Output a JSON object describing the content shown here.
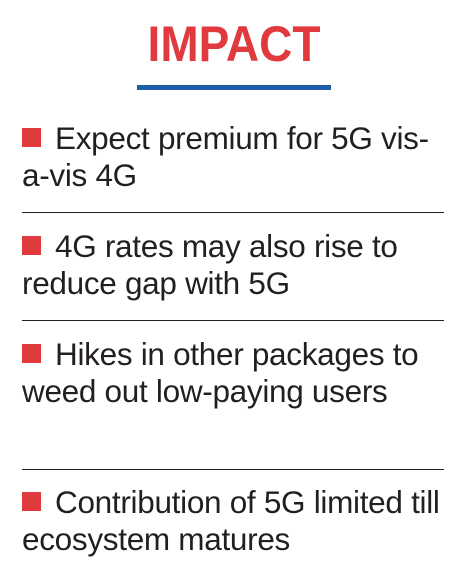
{
  "title": "IMPACT",
  "items": [
    {
      "text": "Expect premium for 5G vis-a-vis 4G"
    },
    {
      "text": "4G rates may also rise to reduce gap with 5G"
    },
    {
      "text": "Hikes in other packages to weed out low-paying users"
    },
    {
      "text": "Contribution of 5G limited till ecosystem matures"
    }
  ],
  "colors": {
    "title": "#e03a3e",
    "underline": "#1f5fa8",
    "bullet": "#e03a3e",
    "text": "#231f20"
  }
}
